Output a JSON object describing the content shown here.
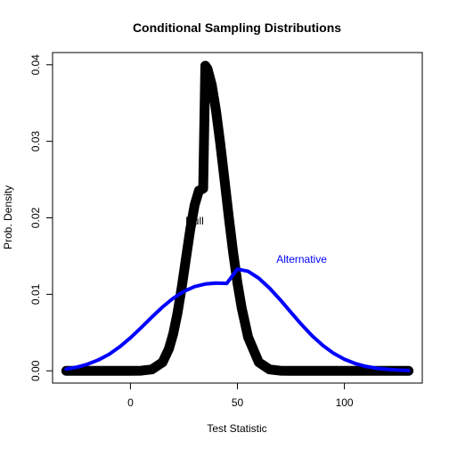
{
  "chart_data": {
    "type": "line",
    "title": "Conditional Sampling Distributions",
    "xlabel": "Test Statistic",
    "ylabel": "Prob. Density",
    "xlim": [
      -30,
      130
    ],
    "ylim": [
      0,
      0.04
    ],
    "x_ticks": [
      "0",
      "50",
      "100"
    ],
    "y_ticks": [
      "0.00",
      "0.01",
      "0.02",
      "0.03",
      "0.04"
    ],
    "grid": false,
    "series": [
      {
        "name": "Null",
        "color": "#000000",
        "style": "thick points",
        "x": [
          -30,
          -25,
          -20,
          -15,
          -10,
          -5,
          0,
          5,
          10,
          15,
          18,
          20,
          22,
          24,
          26,
          28,
          30,
          32,
          34,
          35,
          36,
          38,
          40,
          42,
          44,
          46,
          48,
          50,
          52,
          55,
          60,
          65,
          70,
          75,
          80,
          85,
          90,
          95,
          100,
          105,
          110,
          115,
          120,
          125,
          130
        ],
        "y": [
          0.0,
          0.0,
          0.0,
          0.0,
          0.0,
          0.0,
          0.0,
          2e-05,
          0.00018,
          0.00111,
          0.00289,
          0.00484,
          0.00755,
          0.01096,
          0.01478,
          0.01856,
          0.02166,
          0.02355,
          0.02382,
          0.03989,
          0.03949,
          0.03739,
          0.03399,
          0.02966,
          0.02489,
          0.02003,
          0.01547,
          0.0115,
          0.00821,
          0.00439,
          0.00111,
          0.00018,
          2e-05,
          0.0,
          0.0,
          0.0,
          0.0,
          0.0,
          0.0,
          0.0,
          0.0,
          0.0,
          0.0,
          0.0,
          0.0
        ]
      },
      {
        "name": "Alternative",
        "color": "#0000ff",
        "style": "line",
        "x": [
          -30,
          -25,
          -20,
          -15,
          -10,
          -5,
          0,
          5,
          10,
          15,
          20,
          25,
          30,
          35,
          40,
          45,
          50,
          55,
          60,
          65,
          70,
          75,
          80,
          85,
          90,
          95,
          100,
          105,
          110,
          115,
          120,
          125,
          130
        ],
        "y": [
          0.00023,
          0.00048,
          0.00087,
          0.00142,
          0.00216,
          0.00314,
          0.00432,
          0.00564,
          0.00702,
          0.00834,
          0.00949,
          0.01039,
          0.01101,
          0.01135,
          0.01147,
          0.01142,
          0.0133,
          0.01301,
          0.0121,
          0.01082,
          0.00929,
          0.00765,
          0.00604,
          0.00456,
          0.0033,
          0.00228,
          0.00151,
          0.00096,
          0.00058,
          0.00034,
          0.00019,
          0.0001,
          5e-05
        ]
      }
    ],
    "annotations": [
      {
        "text": "Null",
        "x": 30,
        "y": 0.0195,
        "color": "#000000"
      },
      {
        "text": "Alternative",
        "x": 80,
        "y": 0.0145,
        "color": "#0000ff"
      }
    ]
  }
}
